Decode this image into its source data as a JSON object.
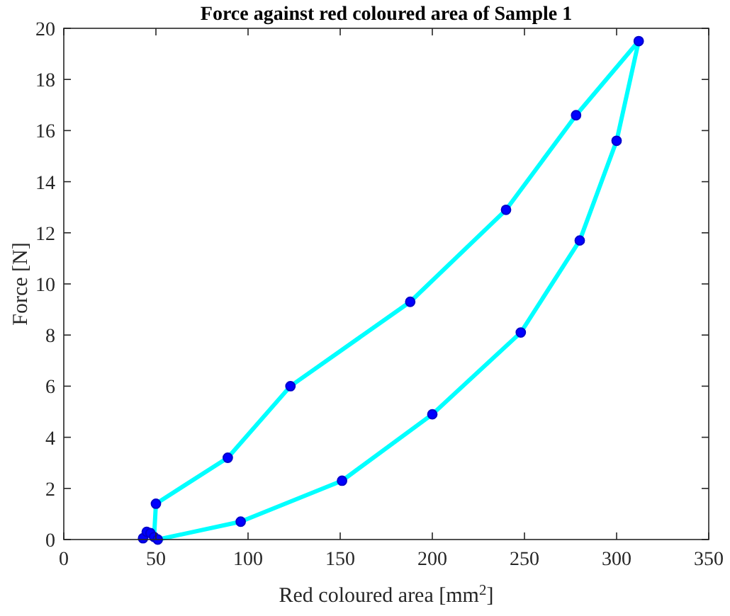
{
  "chart_data": {
    "type": "line",
    "title": "Force against red coloured area of Sample 1",
    "xlabel": "Red coloured area [mm$^{2}$]",
    "ylabel": "Force [N]",
    "xlim": [
      0,
      350
    ],
    "xticks": [
      0,
      50,
      100,
      150,
      200,
      250,
      300,
      350
    ],
    "ylim": [
      0,
      20
    ],
    "yticks": [
      0,
      2,
      4,
      6,
      8,
      10,
      12,
      14,
      16,
      18,
      20
    ],
    "marker": "circle",
    "line_style": "solid",
    "grid": false,
    "x": [
      43,
      45,
      47,
      49,
      50,
      89,
      123,
      188,
      240,
      278,
      312,
      300,
      280,
      248,
      200,
      151,
      96,
      51
    ],
    "series": [
      {
        "color": "#00ffff",
        "values": [
          0.05,
          0.3,
          0.25,
          0.1,
          1.4,
          3.2,
          6.0,
          9.3,
          12.9,
          16.6,
          19.5,
          15.6,
          11.7,
          8.1,
          4.9,
          2.3,
          0.7,
          0
        ]
      }
    ]
  }
}
